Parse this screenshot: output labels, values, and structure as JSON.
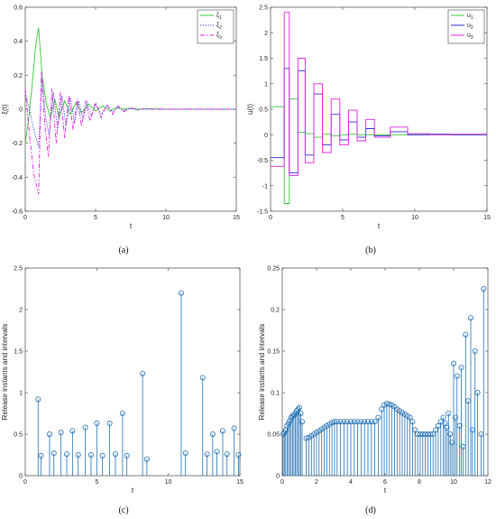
{
  "captions": [
    "(a)",
    "(b)",
    "(c)",
    "(d)"
  ],
  "chart_data": [
    {
      "type": "line",
      "caption": "(a)",
      "xlabel": "t",
      "ylabel": "ξ(t)",
      "xlim": [
        0,
        15
      ],
      "ylim": [
        -0.6,
        0.6
      ],
      "xticks": [
        0,
        5,
        10,
        15
      ],
      "yticks": [
        -0.6,
        -0.4,
        -0.2,
        0,
        0.2,
        0.4,
        0.6
      ],
      "ytick_labels": [
        "-0.6",
        "-0.4",
        "-0.2",
        "0",
        "0.2",
        "0.4",
        "0.6"
      ],
      "grid": false,
      "legend_position": "top-right",
      "series": [
        {
          "name": "ξ1",
          "legend_main": "ξ",
          "legend_sub": "1",
          "color": "#33cc33",
          "dash": "",
          "x": [
            0,
            0.25,
            0.5,
            0.75,
            0.95,
            1.2,
            1.5,
            1.8,
            2.1,
            2.4,
            2.8,
            3.2,
            3.6,
            4.0,
            4.5,
            5.0,
            5.5,
            6.0,
            6.5,
            7.0,
            7.5,
            8.0,
            9.0,
            10.0,
            12.0,
            15.0
          ],
          "y": [
            -0.2,
            -0.05,
            0.15,
            0.38,
            0.48,
            0.2,
            0.03,
            -0.05,
            0.06,
            -0.05,
            0.05,
            -0.03,
            0.04,
            -0.02,
            0.03,
            -0.01,
            0.02,
            -0.01,
            0.01,
            0.0,
            0.005,
            0.0,
            0.002,
            0.0,
            0.0,
            0.0
          ]
        },
        {
          "name": "ξ2",
          "legend_main": "ξ",
          "legend_sub": "2",
          "color": "#2b2bd6",
          "dash": "1.2,1.6",
          "x": [
            0,
            0.3,
            0.6,
            0.95,
            1.2,
            1.45,
            1.7,
            2.0,
            2.3,
            2.6,
            2.9,
            3.2,
            3.5,
            3.8,
            4.1,
            4.4,
            4.7,
            5.0,
            5.4,
            5.8,
            6.2,
            6.6,
            7.0,
            7.5,
            8.0,
            8.5,
            9.0,
            10.0,
            12.0,
            15.0
          ],
          "y": [
            0.1,
            0.0,
            -0.12,
            -0.22,
            0.18,
            -0.05,
            -0.15,
            0.1,
            -0.12,
            0.08,
            -0.1,
            0.07,
            -0.08,
            0.05,
            -0.06,
            0.04,
            -0.04,
            0.03,
            -0.03,
            0.02,
            -0.015,
            0.01,
            -0.008,
            0.005,
            -0.003,
            0.002,
            0.0,
            0.0,
            0.0,
            0.0
          ]
        },
        {
          "name": "ξ3",
          "legend_main": "ξ",
          "legend_sub": "3",
          "color": "#e020e0",
          "dash": "5,2,1.5,2",
          "x": [
            0,
            0.3,
            0.6,
            0.95,
            1.15,
            1.4,
            1.65,
            1.9,
            2.2,
            2.5,
            2.8,
            3.1,
            3.4,
            3.7,
            4.0,
            4.3,
            4.6,
            5.0,
            5.4,
            5.8,
            6.2,
            6.6,
            7.0,
            7.5,
            8.0,
            8.5,
            9.0,
            10.0,
            12.0,
            15.0
          ],
          "y": [
            0.12,
            -0.15,
            -0.38,
            -0.5,
            0.22,
            -0.1,
            -0.28,
            0.12,
            -0.2,
            0.1,
            -0.17,
            0.08,
            -0.12,
            0.06,
            -0.1,
            0.05,
            -0.07,
            0.04,
            -0.05,
            0.03,
            -0.03,
            0.02,
            -0.015,
            0.01,
            -0.005,
            0.003,
            0.0,
            0.0,
            0.0,
            0.0
          ]
        }
      ]
    },
    {
      "type": "line",
      "caption": "(b)",
      "xlabel": "t",
      "ylabel": "u(t)",
      "xlim": [
        0,
        15
      ],
      "ylim": [
        -1.5,
        2.5
      ],
      "xticks": [
        0,
        5,
        10,
        15
      ],
      "yticks": [
        -1.5,
        -1,
        -0.5,
        0,
        0.5,
        1,
        1.5,
        2,
        2.5
      ],
      "ytick_labels": [
        "-1.5",
        "-1",
        "-0.5",
        "0",
        "0.5",
        "1",
        "1.5",
        "2",
        "2.5"
      ],
      "grid": false,
      "legend_position": "top-right",
      "step": true,
      "series": [
        {
          "name": "u1",
          "legend_main": "u",
          "legend_sub": "1",
          "color": "#33cc33",
          "t": [
            0,
            0.95,
            1.3,
            1.9,
            2.4,
            3.0,
            3.6,
            4.2,
            4.8,
            5.4,
            6.0,
            6.6,
            7.2,
            8.3,
            9.5,
            11.0,
            12.5,
            15.0
          ],
          "v": [
            0.55,
            -1.35,
            0.7,
            0.05,
            0.02,
            -0.05,
            0.01,
            -0.02,
            0.0,
            0.01,
            0.0,
            0.0,
            0.0,
            0.0,
            0.0,
            0.0,
            0.0
          ]
        },
        {
          "name": "u2",
          "legend_main": "u",
          "legend_sub": "2",
          "color": "#2b2bd6",
          "t": [
            0,
            0.95,
            1.3,
            1.9,
            2.4,
            3.0,
            3.6,
            4.2,
            4.8,
            5.4,
            6.0,
            6.6,
            7.2,
            8.3,
            9.5,
            11.0,
            12.5,
            15.0
          ],
          "v": [
            -0.45,
            1.3,
            -0.75,
            1.25,
            -0.4,
            0.8,
            -0.2,
            0.4,
            -0.1,
            0.25,
            -0.05,
            0.12,
            -0.02,
            0.06,
            0.0,
            0.01,
            0.0
          ]
        },
        {
          "name": "u3",
          "legend_main": "u",
          "legend_sub": "3",
          "color": "#e020e0",
          "t": [
            0,
            0.95,
            1.3,
            1.9,
            2.4,
            3.0,
            3.6,
            4.2,
            4.8,
            5.4,
            6.0,
            6.6,
            7.2,
            8.3,
            9.5,
            11.0,
            12.5,
            15.0
          ],
          "v": [
            -0.62,
            2.4,
            -0.8,
            1.5,
            -0.55,
            1.0,
            -0.35,
            0.7,
            -0.2,
            0.48,
            -0.12,
            0.3,
            -0.05,
            0.15,
            0.02,
            0.0,
            0.01
          ]
        }
      ]
    },
    {
      "type": "stem",
      "caption": "(c)",
      "xlabel": "t",
      "ylabel": "Release instants and intervals",
      "xlim": [
        0,
        15
      ],
      "ylim": [
        0,
        2.5
      ],
      "xticks": [
        0,
        5,
        10,
        15
      ],
      "yticks": [
        0,
        0.5,
        1,
        1.5,
        2,
        2.5
      ],
      "ytick_labels": [
        "0",
        "0.5",
        "1",
        "1.5",
        "2",
        "2.5"
      ],
      "grid": false,
      "color": "#1f6fb4",
      "x": [
        0.9,
        1.1,
        1.7,
        2.0,
        2.5,
        2.9,
        3.3,
        3.7,
        4.2,
        4.6,
        5.0,
        5.4,
        5.9,
        6.3,
        6.8,
        7.1,
        8.2,
        8.5,
        10.9,
        11.2,
        12.4,
        12.7,
        13.1,
        13.4,
        13.8,
        14.1,
        14.6,
        14.9
      ],
      "y": [
        0.92,
        0.24,
        0.5,
        0.27,
        0.52,
        0.26,
        0.54,
        0.25,
        0.58,
        0.25,
        0.63,
        0.24,
        0.63,
        0.26,
        0.75,
        0.24,
        1.23,
        0.2,
        2.2,
        0.27,
        1.18,
        0.26,
        0.5,
        0.29,
        0.54,
        0.26,
        0.57,
        0.25
      ]
    },
    {
      "type": "stem",
      "caption": "(d)",
      "xlabel": "t",
      "ylabel": "Release instants and intervals",
      "xlim": [
        0,
        12
      ],
      "ylim": [
        0,
        0.25
      ],
      "xticks": [
        0,
        2,
        4,
        6,
        8,
        10,
        12
      ],
      "yticks": [
        0,
        0.05,
        0.1,
        0.15,
        0.2,
        0.25
      ],
      "ytick_labels": [
        "0",
        "0.05",
        "0.1",
        "0.15",
        "0.2",
        "0.25"
      ],
      "grid": false,
      "color": "#1f6fb4",
      "x": [
        0.05,
        0.12,
        0.2,
        0.28,
        0.36,
        0.44,
        0.52,
        0.6,
        0.68,
        0.76,
        0.84,
        0.92,
        1.0,
        1.08,
        1.16,
        1.4,
        1.55,
        1.7,
        1.85,
        2.0,
        2.15,
        2.3,
        2.45,
        2.6,
        2.75,
        2.9,
        3.05,
        3.2,
        3.4,
        3.6,
        3.8,
        4.0,
        4.2,
        4.4,
        4.6,
        4.8,
        5.0,
        5.2,
        5.4,
        5.6,
        5.8,
        5.95,
        6.1,
        6.25,
        6.4,
        6.55,
        6.7,
        6.85,
        7.0,
        7.15,
        7.3,
        7.45,
        7.6,
        7.75,
        7.9,
        8.05,
        8.2,
        8.35,
        8.5,
        8.65,
        8.8,
        8.95,
        9.1,
        9.25,
        9.4,
        9.5,
        9.6,
        9.7,
        9.8,
        9.9,
        10.0,
        10.1,
        10.2,
        10.35,
        10.45,
        10.55,
        10.7,
        10.85,
        11.0,
        11.1,
        11.25,
        11.4,
        11.6,
        11.75
      ],
      "y": [
        0.05,
        0.052,
        0.055,
        0.06,
        0.063,
        0.066,
        0.07,
        0.072,
        0.073,
        0.075,
        0.078,
        0.08,
        0.082,
        0.075,
        0.065,
        0.045,
        0.046,
        0.048,
        0.05,
        0.052,
        0.054,
        0.056,
        0.058,
        0.06,
        0.062,
        0.064,
        0.065,
        0.065,
        0.065,
        0.065,
        0.065,
        0.065,
        0.065,
        0.065,
        0.065,
        0.065,
        0.065,
        0.065,
        0.065,
        0.07,
        0.08,
        0.085,
        0.087,
        0.086,
        0.085,
        0.083,
        0.08,
        0.078,
        0.076,
        0.074,
        0.072,
        0.07,
        0.065,
        0.055,
        0.05,
        0.05,
        0.05,
        0.05,
        0.05,
        0.05,
        0.05,
        0.055,
        0.06,
        0.065,
        0.07,
        0.063,
        0.058,
        0.075,
        0.05,
        0.04,
        0.135,
        0.07,
        0.12,
        0.06,
        0.13,
        0.035,
        0.17,
        0.09,
        0.19,
        0.055,
        0.15,
        0.1,
        0.05,
        0.225
      ]
    }
  ]
}
